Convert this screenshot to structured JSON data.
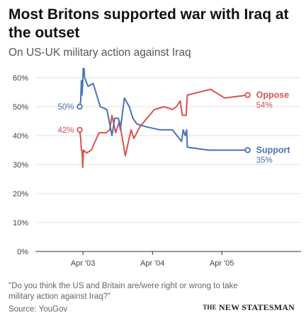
{
  "header": {
    "title": "Most Britons supported war with Iraq at the outset",
    "subtitle": "On US-UK military action against Iraq"
  },
  "footer": {
    "question": "\"Do you think the US and Britain are/were right or wrong to take military action against Iraq?\"",
    "source": "Source: YouGov",
    "brand_prefix": "THE",
    "brand_name": "NEW STATESMAN"
  },
  "colors": {
    "oppose": "#d9534f",
    "support": "#4a73b5",
    "grid": "#e2e2e2",
    "axis": "#333333"
  },
  "chart_data": {
    "type": "line",
    "title": "Most Britons supported war with Iraq at the outset",
    "subtitle": "On US-UK military action against Iraq",
    "x_axis": {
      "type": "date",
      "range": [
        "2002-10-15",
        "2005-09-15"
      ],
      "ticks": [
        "2003-04-01",
        "2004-04-01",
        "2005-04-01"
      ],
      "tick_labels": [
        "Apr '03",
        "Apr '04",
        "Apr '05"
      ]
    },
    "y_axis": {
      "range": [
        0,
        60
      ],
      "ticks": [
        0,
        10,
        20,
        30,
        40,
        50,
        60
      ],
      "tick_labels": [
        "0%",
        "10%",
        "20%",
        "30%",
        "40%",
        "50%",
        "60%"
      ]
    },
    "grid": true,
    "legend": "inline-right",
    "series": [
      {
        "name": "Oppose",
        "color": "#d9534f",
        "start_label": "42%",
        "end_label": "54%",
        "points": [
          [
            "2003-03-15",
            42
          ],
          [
            "2003-03-20",
            39
          ],
          [
            "2003-03-24",
            35
          ],
          [
            "2003-03-27",
            35
          ],
          [
            "2003-03-31",
            29
          ],
          [
            "2003-04-04",
            35
          ],
          [
            "2003-04-20",
            34
          ],
          [
            "2003-05-15",
            35
          ],
          [
            "2003-06-25",
            41
          ],
          [
            "2003-08-01",
            41
          ],
          [
            "2003-08-20",
            42
          ],
          [
            "2003-09-01",
            47
          ],
          [
            "2003-09-20",
            41
          ],
          [
            "2003-10-10",
            45
          ],
          [
            "2003-11-10",
            33
          ],
          [
            "2003-12-10",
            42
          ],
          [
            "2003-12-25",
            39
          ],
          [
            "2004-01-25",
            43
          ],
          [
            "2004-04-10",
            49
          ],
          [
            "2004-06-01",
            50
          ],
          [
            "2004-07-15",
            49
          ],
          [
            "2004-08-05",
            50
          ],
          [
            "2004-08-25",
            52
          ],
          [
            "2004-09-05",
            47
          ],
          [
            "2004-09-25",
            47
          ],
          [
            "2004-10-01",
            54
          ],
          [
            "2005-02-01",
            56
          ],
          [
            "2005-04-15",
            53
          ],
          [
            "2005-08-15",
            54
          ]
        ]
      },
      {
        "name": "Support",
        "color": "#4a73b5",
        "start_label": "50%",
        "end_label": "35%",
        "points": [
          [
            "2003-03-15",
            50
          ],
          [
            "2003-03-20",
            52
          ],
          [
            "2003-03-24",
            59
          ],
          [
            "2003-03-27",
            54
          ],
          [
            "2003-03-31",
            58
          ],
          [
            "2003-04-04",
            66
          ],
          [
            "2003-04-10",
            60
          ],
          [
            "2003-04-28",
            57
          ],
          [
            "2003-05-25",
            58
          ],
          [
            "2003-07-01",
            50
          ],
          [
            "2003-08-05",
            49
          ],
          [
            "2003-08-20",
            44
          ],
          [
            "2003-09-01",
            40
          ],
          [
            "2003-09-15",
            46
          ],
          [
            "2003-10-05",
            46
          ],
          [
            "2003-10-15",
            42
          ],
          [
            "2003-11-05",
            53
          ],
          [
            "2003-12-01",
            50
          ],
          [
            "2003-12-20",
            46
          ],
          [
            "2004-01-10",
            44
          ],
          [
            "2004-03-01",
            43
          ],
          [
            "2004-05-10",
            42
          ],
          [
            "2004-07-15",
            42
          ],
          [
            "2004-08-20",
            39
          ],
          [
            "2004-09-01",
            38
          ],
          [
            "2004-09-10",
            42
          ],
          [
            "2004-09-20",
            40
          ],
          [
            "2004-09-28",
            42
          ],
          [
            "2004-10-01",
            36
          ],
          [
            "2005-01-20",
            35
          ],
          [
            "2005-08-15",
            35
          ]
        ]
      }
    ]
  }
}
